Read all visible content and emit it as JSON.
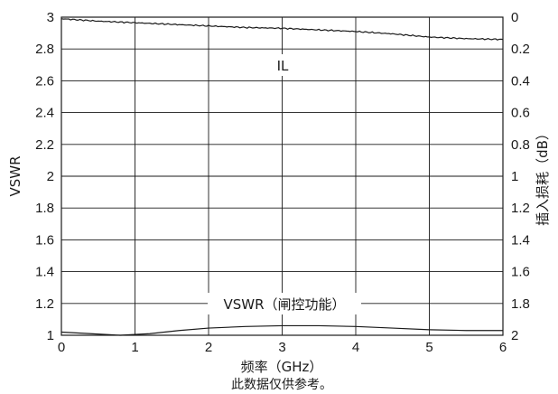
{
  "chart_data": {
    "type": "line",
    "xlabel": "频率（GHz）",
    "ylabel": "VSWR",
    "y2label": "插入损耗（dB）",
    "note": "此数据仅供参考。",
    "xlim": [
      0,
      6
    ],
    "ylim": [
      1,
      3
    ],
    "y2lim": [
      2,
      0
    ],
    "x_ticks": [
      "0",
      "1",
      "2",
      "3",
      "4",
      "5",
      "6"
    ],
    "y_ticks": [
      "3",
      "2.8",
      "2.6",
      "2.4",
      "2.2",
      "2",
      "1.8",
      "1.6",
      "1.4",
      "1.2",
      "1"
    ],
    "y2_ticks": [
      "0",
      "0.2",
      "0.4",
      "0.6",
      "0.8",
      "1",
      "1.2",
      "1.4",
      "1.6",
      "1.8",
      "2"
    ],
    "grid": true,
    "series": [
      {
        "name": "IL",
        "axis": "right",
        "x": [
          0,
          0.5,
          1,
          1.5,
          2,
          2.5,
          3,
          3.5,
          4,
          4.5,
          5,
          5.5,
          6
        ],
        "values": [
          0.01,
          0.025,
          0.035,
          0.045,
          0.055,
          0.065,
          0.07,
          0.08,
          0.09,
          0.105,
          0.125,
          0.135,
          0.14
        ]
      },
      {
        "name": "VSWR（闸控功能）",
        "axis": "left",
        "x": [
          0,
          0.4,
          0.8,
          1.2,
          1.6,
          2,
          2.5,
          3,
          3.5,
          4,
          4.5,
          5,
          5.5,
          6
        ],
        "values": [
          1.02,
          1.01,
          1.0,
          1.01,
          1.03,
          1.045,
          1.055,
          1.06,
          1.06,
          1.055,
          1.045,
          1.035,
          1.03,
          1.03
        ]
      }
    ],
    "labels": {
      "il": "IL",
      "vswr": "VSWR（闸控功能）"
    }
  }
}
